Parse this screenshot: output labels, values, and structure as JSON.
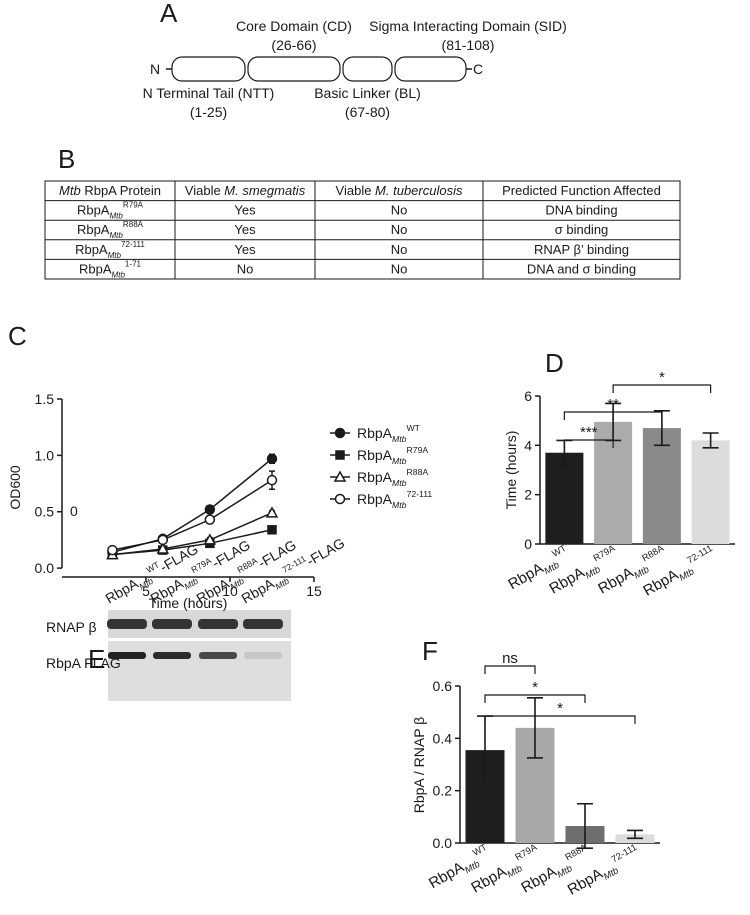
{
  "panel_labels": [
    "A",
    "B",
    "C",
    "D",
    "E",
    "F"
  ],
  "domain_diagram": {
    "n_terminus": "N",
    "c_terminus": "C",
    "domains": [
      {
        "name": "N Terminal Tail (NTT)",
        "range": "(1-25)"
      },
      {
        "name": "Core Domain (CD)",
        "range": "(26-66)"
      },
      {
        "name": "Basic Linker (BL)",
        "range": "(67-80)"
      },
      {
        "name": "Sigma Interacting Domain (SID)",
        "range": "(81-108)"
      }
    ]
  },
  "table": {
    "header": [
      [
        {
          "text": "Mtb",
          "italic": true
        },
        {
          "text": " RbpA Protein",
          "italic": false
        }
      ],
      [
        {
          "text": "Viable ",
          "italic": false
        },
        {
          "text": "M. smegmatis",
          "italic": true
        }
      ],
      [
        {
          "text": "Viable ",
          "italic": false
        },
        {
          "text": "M. tuberculosis",
          "italic": true
        }
      ],
      [
        {
          "text": "Predicted Function Affected",
          "italic": false
        }
      ]
    ],
    "rows": [
      [
        {
          "base": "RbpA",
          "sub": "Mtb",
          "sup": "R79A"
        },
        "Yes",
        "No",
        "DNA binding"
      ],
      [
        {
          "base": "RbpA",
          "sub": "Mtb",
          "sup": "R88A"
        },
        "Yes",
        "No",
        "σ binding"
      ],
      [
        {
          "base": "RbpA",
          "sub": "Mtb",
          "sup": "72-111"
        },
        "Yes",
        "No",
        "RNAP β’ binding"
      ],
      [
        {
          "base": "RbpA",
          "sub": "Mtb",
          "sup": "1-71"
        },
        "No",
        "No",
        "DNA and σ binding"
      ]
    ]
  },
  "blot": {
    "lanes": [
      {
        "base": "RbpA",
        "sub": "Mtb",
        "sup": "WT",
        "suffix": "-FLAG"
      },
      {
        "base": "RbpA",
        "sub": "Mtb",
        "sup": "R79A",
        "suffix": "-FLAG"
      },
      {
        "base": "RbpA",
        "sub": "Mtb",
        "sup": "R88A",
        "suffix": "-FLAG"
      },
      {
        "base": "RbpA",
        "sub": "Mtb",
        "sup": "72-111",
        "suffix": "-FLAG"
      }
    ],
    "rows": [
      "RNAP β",
      "RbpA FLAG"
    ]
  },
  "chart_data": [
    {
      "type": "line",
      "xlabel": "Time (hours)",
      "ylabel": "OD600",
      "annotation": "0",
      "x": [
        3,
        6,
        8.8,
        12.5
      ],
      "xlim": [
        0,
        15
      ],
      "xticks": [
        5,
        10,
        15
      ],
      "ylim": [
        -0.07,
        1.5
      ],
      "yticks": [
        {
          "value": 0,
          "label": "0.0"
        },
        0.5,
        {
          "value": 1,
          "label": "1.0"
        },
        1.5
      ],
      "legend_base": "RbpA",
      "legend_sub": "Mtb",
      "series": [
        {
          "name": "WT",
          "marker": "circle-filled",
          "color": "#1a1a1a",
          "values": [
            0.14,
            0.26,
            0.52,
            0.97
          ],
          "errors": [
            0.01,
            0.01,
            0.03,
            0.04
          ]
        },
        {
          "name": "R79A",
          "marker": "square",
          "color": "#1a1a1a",
          "values": [
            0.12,
            0.16,
            0.22,
            0.34
          ],
          "errors": [
            0.01,
            0.01,
            0.01,
            0.02
          ]
        },
        {
          "name": "R88A",
          "marker": "triangle-open",
          "color": "#1a1a1a",
          "values": [
            0.12,
            0.17,
            0.25,
            0.49
          ],
          "errors": [
            0.01,
            0.01,
            0.02,
            0.02
          ]
        },
        {
          "name": "72-111",
          "marker": "circle-open",
          "color": "#1a1a1a",
          "values": [
            0.16,
            0.25,
            0.43,
            0.78
          ],
          "errors": [
            0.01,
            0.01,
            0.02,
            0.08
          ]
        }
      ]
    },
    {
      "type": "bar",
      "ylabel": "Time (hours)",
      "label_base": "RbpA",
      "label_sub": "Mtb",
      "categories": [
        "WT",
        "R79A",
        "R88A",
        "72-111"
      ],
      "values": [
        3.7,
        4.95,
        4.7,
        4.2
      ],
      "errors": [
        0.5,
        0.75,
        0.7,
        0.3
      ],
      "colors": [
        "#1e1e1e",
        "#ababab",
        "#8a8a8a",
        "#dcdcdc"
      ],
      "ylim": [
        0,
        6
      ],
      "yticks": [
        0,
        2,
        4,
        6
      ],
      "significance": [
        {
          "from": 0,
          "to": 1,
          "label": "***"
        },
        {
          "from": 0,
          "to": 2,
          "label": "**"
        },
        {
          "from": 1,
          "to": 3,
          "label": "*"
        }
      ]
    },
    {
      "type": "bar",
      "ylabel": "RbpA / RNAP β",
      "label_base": "RbpA",
      "label_sub": "Mtb",
      "categories": [
        "WT",
        "R79A",
        "R88A",
        "72-111"
      ],
      "values": [
        0.355,
        0.44,
        0.065,
        0.033
      ],
      "errors": [
        0.13,
        0.115,
        0.085,
        0.015
      ],
      "colors": [
        "#1e1e1e",
        "#a8a8a8",
        "#6e6e6e",
        "#dcdcdc"
      ],
      "ylim": [
        0,
        0.6
      ],
      "yticks": [
        {
          "value": 0,
          "label": "0.0"
        },
        0.2,
        0.4,
        0.6
      ],
      "significance": [
        {
          "from": 0,
          "to": 1,
          "label": "ns"
        },
        {
          "from": 0,
          "to": 2,
          "label": "*"
        },
        {
          "from": 0,
          "to": 3,
          "label": "*"
        }
      ]
    }
  ]
}
